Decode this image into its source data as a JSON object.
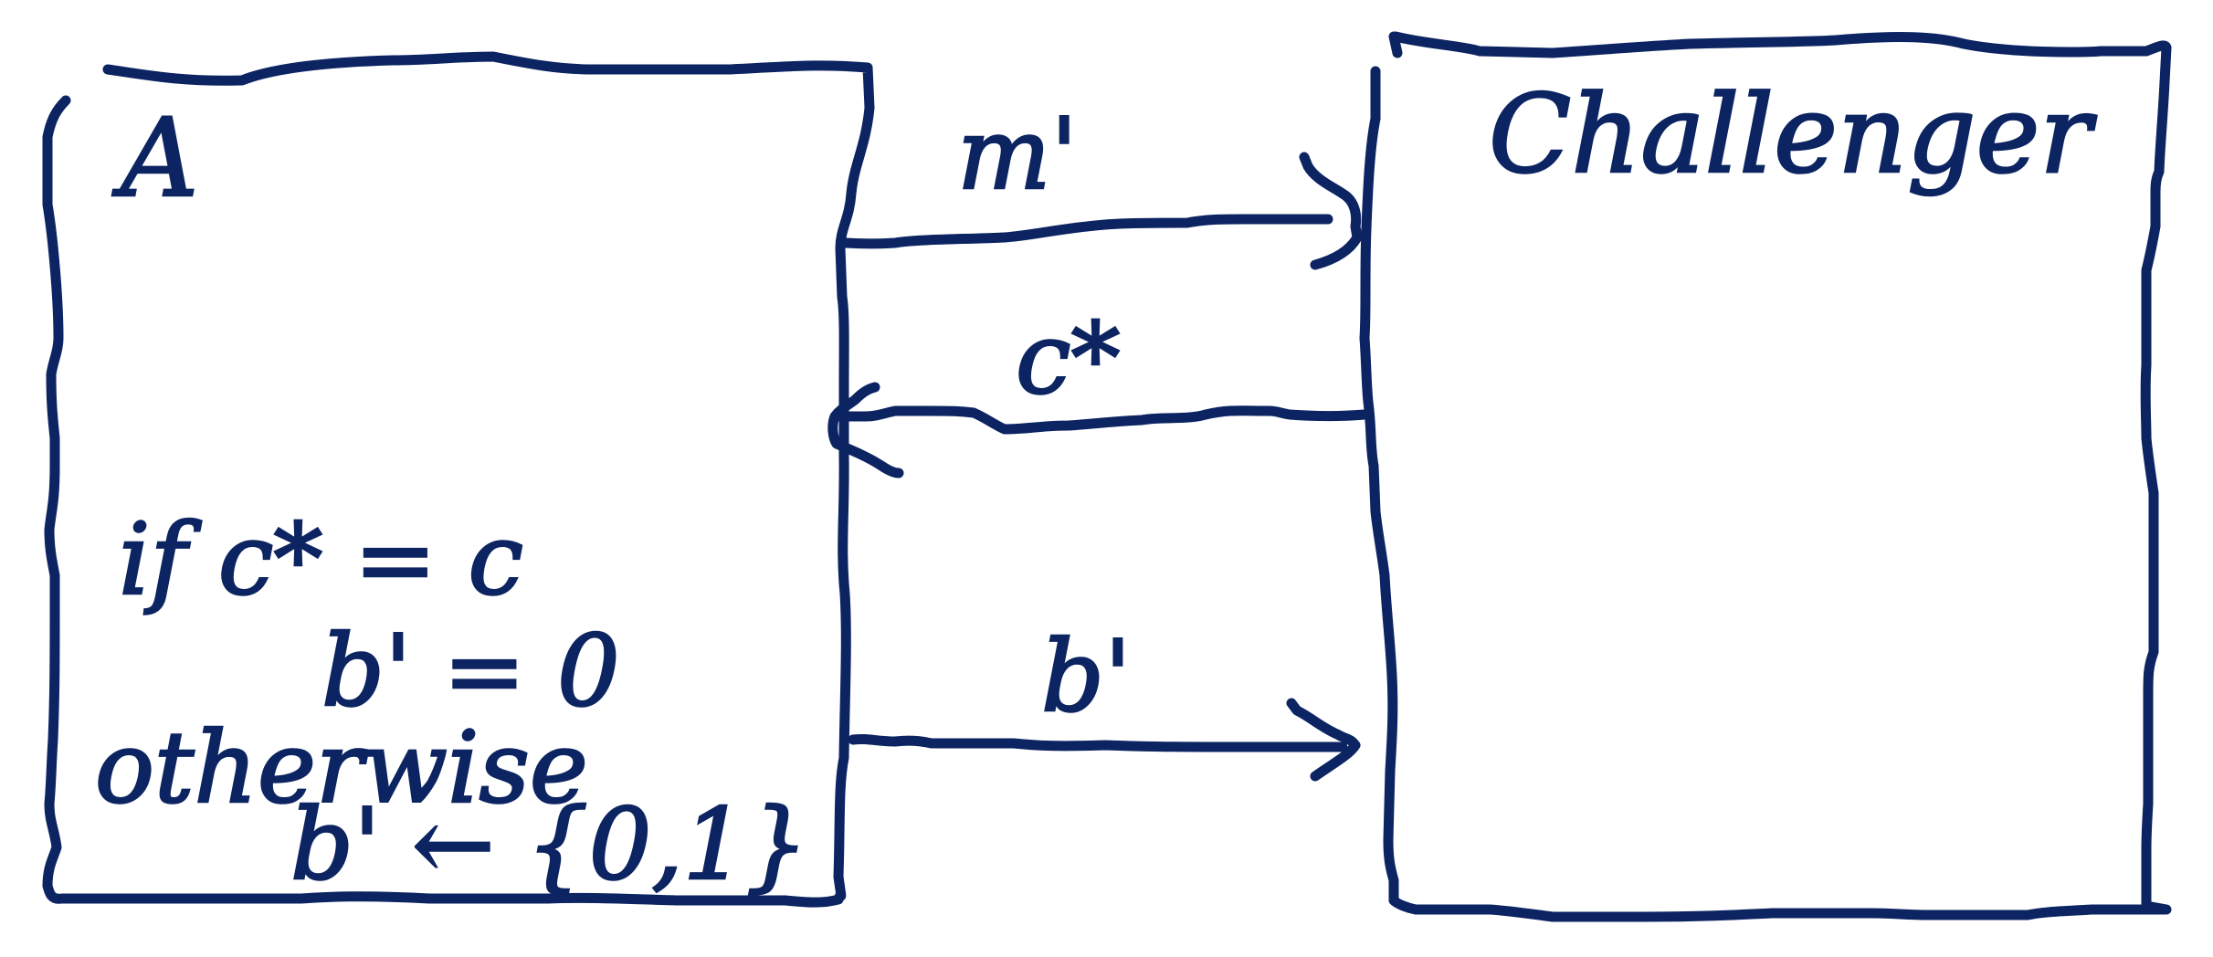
{
  "boxes": {
    "left": {
      "label": "A"
    },
    "right": {
      "label": "Challenger"
    }
  },
  "messages": [
    {
      "label": "m'",
      "direction": "A to Challenger"
    },
    {
      "label": "c*",
      "direction": "Challenger to A"
    },
    {
      "label": "b'",
      "direction": "A to Challenger"
    }
  ],
  "conditions": {
    "if_line": "if c* = c",
    "then_line": "b' = 0",
    "otherwise_line": "otherwise",
    "else_line": "b' ← {0,1}"
  },
  "colors": {
    "ink": "#0c2461",
    "background": "#ffffff"
  }
}
